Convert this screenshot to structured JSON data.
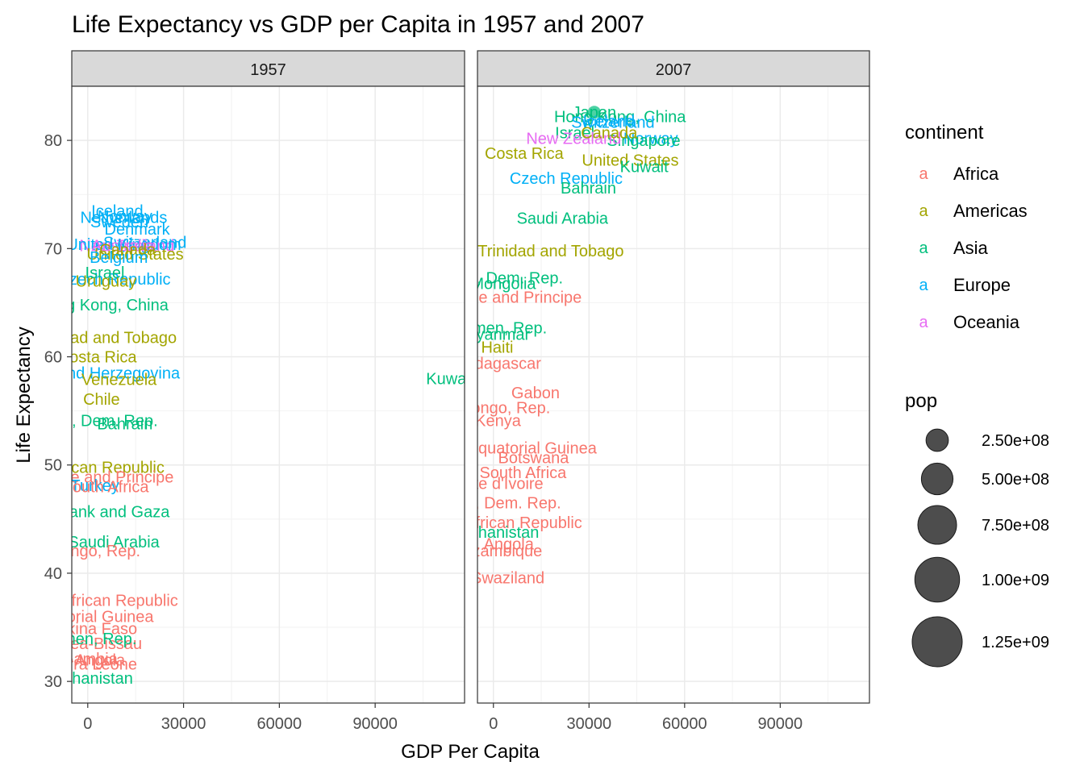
{
  "chart_data": {
    "type": "scatter",
    "title": "Life Expectancy vs GDP per Capita in 1957 and 2007",
    "xlabel": "GDP Per Capita",
    "ylabel": "Life Expectancy",
    "xlim": [
      -5000,
      118000
    ],
    "ylim": [
      28,
      85
    ],
    "x_ticks": [
      0,
      30000,
      60000,
      90000
    ],
    "x_tick_labels": [
      "0",
      "30000",
      "60000",
      "90000"
    ],
    "y_ticks": [
      30,
      40,
      50,
      60,
      70,
      80
    ],
    "y_tick_labels": [
      "30",
      "40",
      "50",
      "60",
      "70",
      "80"
    ],
    "grid": true,
    "legend_position": "right",
    "continent_colors": {
      "Africa": "#F8766D",
      "Americas": "#A3A500",
      "Asia": "#00BF7D",
      "Europe": "#00B0F6",
      "Oceania": "#E76BF3"
    },
    "panels": [
      {
        "facet": "1957",
        "labels": [
          {
            "text": "Iceland",
            "x": 9244,
            "y": 73.5,
            "continent": "Europe"
          },
          {
            "text": "Norway",
            "x": 11654,
            "y": 73.0,
            "continent": "Europe"
          },
          {
            "text": "Netherlands",
            "x": 11276,
            "y": 72.9,
            "continent": "Europe"
          },
          {
            "text": "Sweden",
            "x": 9911,
            "y": 72.5,
            "continent": "Europe"
          },
          {
            "text": "Denmark",
            "x": 15478,
            "y": 71.8,
            "continent": "Europe"
          },
          {
            "text": "Switzerland",
            "x": 17909,
            "y": 70.6,
            "continent": "Europe"
          },
          {
            "text": "New Zealand",
            "x": 12248,
            "y": 70.3,
            "continent": "Oceania"
          },
          {
            "text": "United Kingdom",
            "x": 11283,
            "y": 70.4,
            "continent": "Europe"
          },
          {
            "text": "Australia",
            "x": 10950,
            "y": 70.3,
            "continent": "Oceania"
          },
          {
            "text": "United States",
            "x": 14847,
            "y": 69.5,
            "continent": "Americas"
          },
          {
            "text": "Canada",
            "x": 12490,
            "y": 69.9,
            "continent": "Americas"
          },
          {
            "text": "Belgium",
            "x": 9715,
            "y": 69.2,
            "continent": "Europe"
          },
          {
            "text": "Czech Republic",
            "x": 8257,
            "y": 67.2,
            "continent": "Europe"
          },
          {
            "text": "Israel",
            "x": 5350,
            "y": 67.8,
            "continent": "Asia"
          },
          {
            "text": "Uruguay",
            "x": 5716,
            "y": 67.0,
            "continent": "Americas"
          },
          {
            "text": "Hong Kong, China",
            "x": 4630,
            "y": 64.8,
            "continent": "Asia"
          },
          {
            "text": "Trinidad and Tobago",
            "x": 4979,
            "y": 61.8,
            "continent": "Americas"
          },
          {
            "text": "Costa Rica",
            "x": 2990,
            "y": 60.0,
            "continent": "Americas"
          },
          {
            "text": "Bosnia and Herzegovina",
            "x": 1354,
            "y": 58.5,
            "continent": "Europe"
          },
          {
            "text": "Venezuela",
            "x": 9802,
            "y": 57.9,
            "continent": "Americas"
          },
          {
            "text": "Kuwait",
            "x": 113523,
            "y": 58.0,
            "continent": "Asia"
          },
          {
            "text": "Chile",
            "x": 4316,
            "y": 56.1,
            "continent": "Americas"
          },
          {
            "text": "Korea, Dem. Rep.",
            "x": 1726,
            "y": 54.1,
            "continent": "Asia"
          },
          {
            "text": "Bahrain",
            "x": 11636,
            "y": 53.8,
            "continent": "Asia"
          },
          {
            "text": "Dominican Republic",
            "x": 1544,
            "y": 49.8,
            "continent": "Americas"
          },
          {
            "text": "Sao Tome and Principe",
            "x": 861,
            "y": 48.9,
            "continent": "Africa"
          },
          {
            "text": "Turkey",
            "x": 2219,
            "y": 48.1,
            "continent": "Europe"
          },
          {
            "text": "South Africa",
            "x": 5487,
            "y": 47.99,
            "continent": "Africa"
          },
          {
            "text": "West Bank and Gaza",
            "x": 1827,
            "y": 45.7,
            "continent": "Asia"
          },
          {
            "text": "Saudi Arabia",
            "x": 8157,
            "y": 42.9,
            "continent": "Asia"
          },
          {
            "text": "Congo, Rep.",
            "x": 2315,
            "y": 42.1,
            "continent": "Africa"
          },
          {
            "text": "Central African Republic",
            "x": 1190,
            "y": 37.5,
            "continent": "Africa"
          },
          {
            "text": "Equatorial Guinea",
            "x": 426,
            "y": 36.0,
            "continent": "Africa"
          },
          {
            "text": "Burkina Faso",
            "x": 617,
            "y": 34.9,
            "continent": "Africa"
          },
          {
            "text": "Guinea-Bissau",
            "x": 432,
            "y": 33.5,
            "continent": "Africa"
          },
          {
            "text": "Yemen, Rep.",
            "x": 804,
            "y": 33.97,
            "continent": "Asia"
          },
          {
            "text": "Angola",
            "x": 3828,
            "y": 31.99,
            "continent": "Africa"
          },
          {
            "text": "Gambia",
            "x": 520,
            "y": 32.1,
            "continent": "Africa"
          },
          {
            "text": "Sierra Leone",
            "x": 1004,
            "y": 31.6,
            "continent": "Africa"
          },
          {
            "text": "Afghanistan",
            "x": 821,
            "y": 30.3,
            "continent": "Asia"
          }
        ]
      },
      {
        "facet": "2007",
        "labels": [
          {
            "text": "Japan",
            "x": 31656,
            "y": 82.6,
            "continent": "Asia"
          },
          {
            "text": "Hong Kong, China",
            "x": 39725,
            "y": 82.2,
            "continent": "Asia"
          },
          {
            "text": "Iceland",
            "x": 36181,
            "y": 81.8,
            "continent": "Europe"
          },
          {
            "text": "Switzerland",
            "x": 37506,
            "y": 81.7,
            "continent": "Europe"
          },
          {
            "text": "Israel",
            "x": 25523,
            "y": 80.7,
            "continent": "Asia"
          },
          {
            "text": "Norway",
            "x": 49357,
            "y": 80.2,
            "continent": "Europe"
          },
          {
            "text": "Singapore",
            "x": 47143,
            "y": 80.0,
            "continent": "Asia"
          },
          {
            "text": "New Zealand",
            "x": 25185,
            "y": 80.2,
            "continent": "Oceania"
          },
          {
            "text": "Canada",
            "x": 36319,
            "y": 80.7,
            "continent": "Americas"
          },
          {
            "text": "Costa Rica",
            "x": 9645,
            "y": 78.8,
            "continent": "Americas"
          },
          {
            "text": "United States",
            "x": 42952,
            "y": 78.2,
            "continent": "Americas"
          },
          {
            "text": "Kuwait",
            "x": 47307,
            "y": 77.6,
            "continent": "Asia"
          },
          {
            "text": "Czech Republic",
            "x": 22833,
            "y": 76.5,
            "continent": "Europe"
          },
          {
            "text": "Bahrain",
            "x": 29796,
            "y": 75.6,
            "continent": "Asia"
          },
          {
            "text": "Saudi Arabia",
            "x": 21655,
            "y": 72.8,
            "continent": "Asia"
          },
          {
            "text": "Trinidad and Tobago",
            "x": 18009,
            "y": 69.8,
            "continent": "Americas"
          },
          {
            "text": "Korea, Dem. Rep.",
            "x": 1593,
            "y": 67.3,
            "continent": "Asia"
          },
          {
            "text": "Mongolia",
            "x": 3096,
            "y": 66.8,
            "continent": "Asia"
          },
          {
            "text": "Sao Tome and Principe",
            "x": 1598,
            "y": 65.5,
            "continent": "Africa"
          },
          {
            "text": "Yemen, Rep.",
            "x": 2281,
            "y": 62.7,
            "continent": "Asia"
          },
          {
            "text": "Myanmar",
            "x": 944,
            "y": 62.1,
            "continent": "Asia"
          },
          {
            "text": "Haiti",
            "x": 1202,
            "y": 60.9,
            "continent": "Americas"
          },
          {
            "text": "Madagascar",
            "x": 1044,
            "y": 59.4,
            "continent": "Africa"
          },
          {
            "text": "Gabon",
            "x": 13206,
            "y": 56.7,
            "continent": "Africa"
          },
          {
            "text": "Congo, Rep.",
            "x": 3633,
            "y": 55.3,
            "continent": "Africa"
          },
          {
            "text": "Kenya",
            "x": 1463,
            "y": 54.1,
            "continent": "Africa"
          },
          {
            "text": "Equatorial Guinea",
            "x": 12154,
            "y": 51.6,
            "continent": "Africa"
          },
          {
            "text": "Botswana",
            "x": 12570,
            "y": 50.7,
            "continent": "Africa"
          },
          {
            "text": "South Africa",
            "x": 9270,
            "y": 49.3,
            "continent": "Africa"
          },
          {
            "text": "Cote d'Ivoire",
            "x": 1545,
            "y": 48.3,
            "continent": "Africa"
          },
          {
            "text": "Congo, Dem. Rep.",
            "x": 278,
            "y": 46.5,
            "continent": "Africa"
          },
          {
            "text": "Central African Republic",
            "x": 706,
            "y": 44.7,
            "continent": "Africa"
          },
          {
            "text": "Afghanistan",
            "x": 975,
            "y": 43.8,
            "continent": "Asia"
          },
          {
            "text": "Angola",
            "x": 4797,
            "y": 42.7,
            "continent": "Africa"
          },
          {
            "text": "Mozambique",
            "x": 824,
            "y": 42.1,
            "continent": "Africa"
          },
          {
            "text": "Swaziland",
            "x": 4513,
            "y": 39.6,
            "continent": "Africa"
          }
        ]
      }
    ],
    "legend": {
      "color_title": "continent",
      "color_entries": [
        "Africa",
        "Americas",
        "Asia",
        "Europe",
        "Oceania"
      ],
      "size_title": "pop",
      "size_entries": [
        "2.50e+08",
        "5.00e+08",
        "7.50e+08",
        "1.00e+09",
        "1.25e+09"
      ],
      "size_values": [
        250000000,
        500000000,
        750000000,
        1000000000,
        1250000000
      ]
    }
  }
}
